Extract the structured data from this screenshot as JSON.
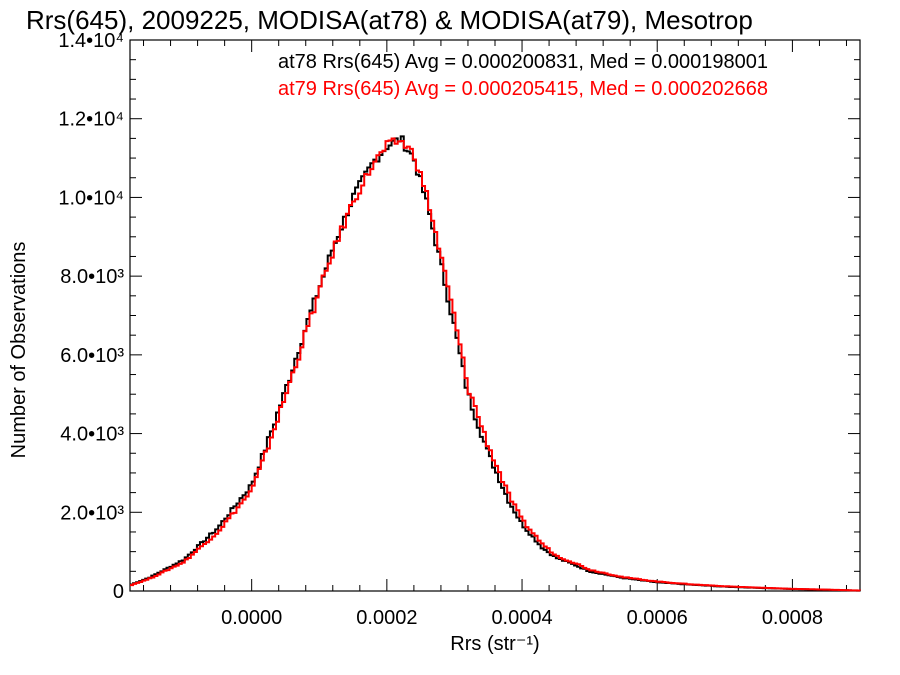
{
  "chart_data": {
    "type": "line",
    "title": "Rrs(645), 2009225, MODISA(at78) & MODISA(at79), Mesotrop",
    "xlabel": "Rrs (str⁻¹)",
    "ylabel": "Number of Observations",
    "xlim": [
      -0.00018,
      0.0009
    ],
    "ylim": [
      0,
      14000
    ],
    "xticks": [
      {
        "value": 0.0,
        "label": "0.0000"
      },
      {
        "value": 0.0002,
        "label": "0.0002"
      },
      {
        "value": 0.0004,
        "label": "0.0004"
      },
      {
        "value": 0.0006,
        "label": "0.0006"
      },
      {
        "value": 0.0008,
        "label": "0.0008"
      }
    ],
    "yticks": [
      {
        "value": 0,
        "label": "0"
      },
      {
        "value": 2000,
        "label": "2.0•10³"
      },
      {
        "value": 4000,
        "label": "4.0•10³"
      },
      {
        "value": 6000,
        "label": "6.0•10³"
      },
      {
        "value": 8000,
        "label": "8.0•10³"
      },
      {
        "value": 10000,
        "label": "1.0•10⁴"
      },
      {
        "value": 12000,
        "label": "1.2•10⁴"
      },
      {
        "value": 14000,
        "label": "1.4•10⁴"
      }
    ],
    "grid": false,
    "legend_position": "top-right",
    "annotations": [
      {
        "text": "at78 Rrs(645) Avg = 0.000200831, Med = 0.000198001",
        "color": "#000000"
      },
      {
        "text": "at79 Rrs(645) Avg = 0.000205415, Med = 0.000202668",
        "color": "#ff0000"
      }
    ],
    "series": [
      {
        "color": "#000000",
        "style": "histogram-step",
        "x": [
          -0.00018,
          -0.00015,
          -0.0001,
          -5e-05,
          0.0,
          2e-05,
          5e-05,
          8e-05,
          0.0001,
          0.00012,
          0.00015,
          0.00018,
          0.0002,
          0.00022,
          0.00024,
          0.00026,
          0.00028,
          0.0003,
          0.00032,
          0.00035,
          0.00038,
          0.0004,
          0.00043,
          0.00045,
          0.00048,
          0.0005,
          0.00055,
          0.0006,
          0.00065,
          0.0007,
          0.00075,
          0.0008,
          0.00085,
          0.0009
        ],
        "y": [
          150,
          350,
          800,
          1600,
          2700,
          3600,
          5100,
          6700,
          7700,
          8700,
          10000,
          10900,
          11300,
          11500,
          11000,
          9800,
          8300,
          6700,
          5000,
          3500,
          2300,
          1700,
          1100,
          850,
          650,
          500,
          330,
          220,
          160,
          110,
          80,
          50,
          30,
          10
        ]
      },
      {
        "color": "#ff0000",
        "style": "histogram-step",
        "x": [
          -0.00018,
          -0.00015,
          -0.0001,
          -5e-05,
          0.0,
          2e-05,
          5e-05,
          8e-05,
          0.0001,
          0.00012,
          0.00015,
          0.00018,
          0.0002,
          0.00022,
          0.00024,
          0.00026,
          0.00028,
          0.0003,
          0.00032,
          0.00035,
          0.00038,
          0.0004,
          0.00043,
          0.00045,
          0.00048,
          0.0005,
          0.00055,
          0.0006,
          0.00065,
          0.0007,
          0.00075,
          0.0008,
          0.00085,
          0.0009
        ],
        "y": [
          140,
          320,
          740,
          1500,
          2550,
          3450,
          4950,
          6550,
          7600,
          8600,
          9900,
          10850,
          11300,
          11450,
          11100,
          10000,
          8500,
          6950,
          5200,
          3700,
          2450,
          1800,
          1200,
          900,
          700,
          540,
          350,
          240,
          170,
          120,
          85,
          55,
          35,
          12
        ]
      }
    ]
  }
}
